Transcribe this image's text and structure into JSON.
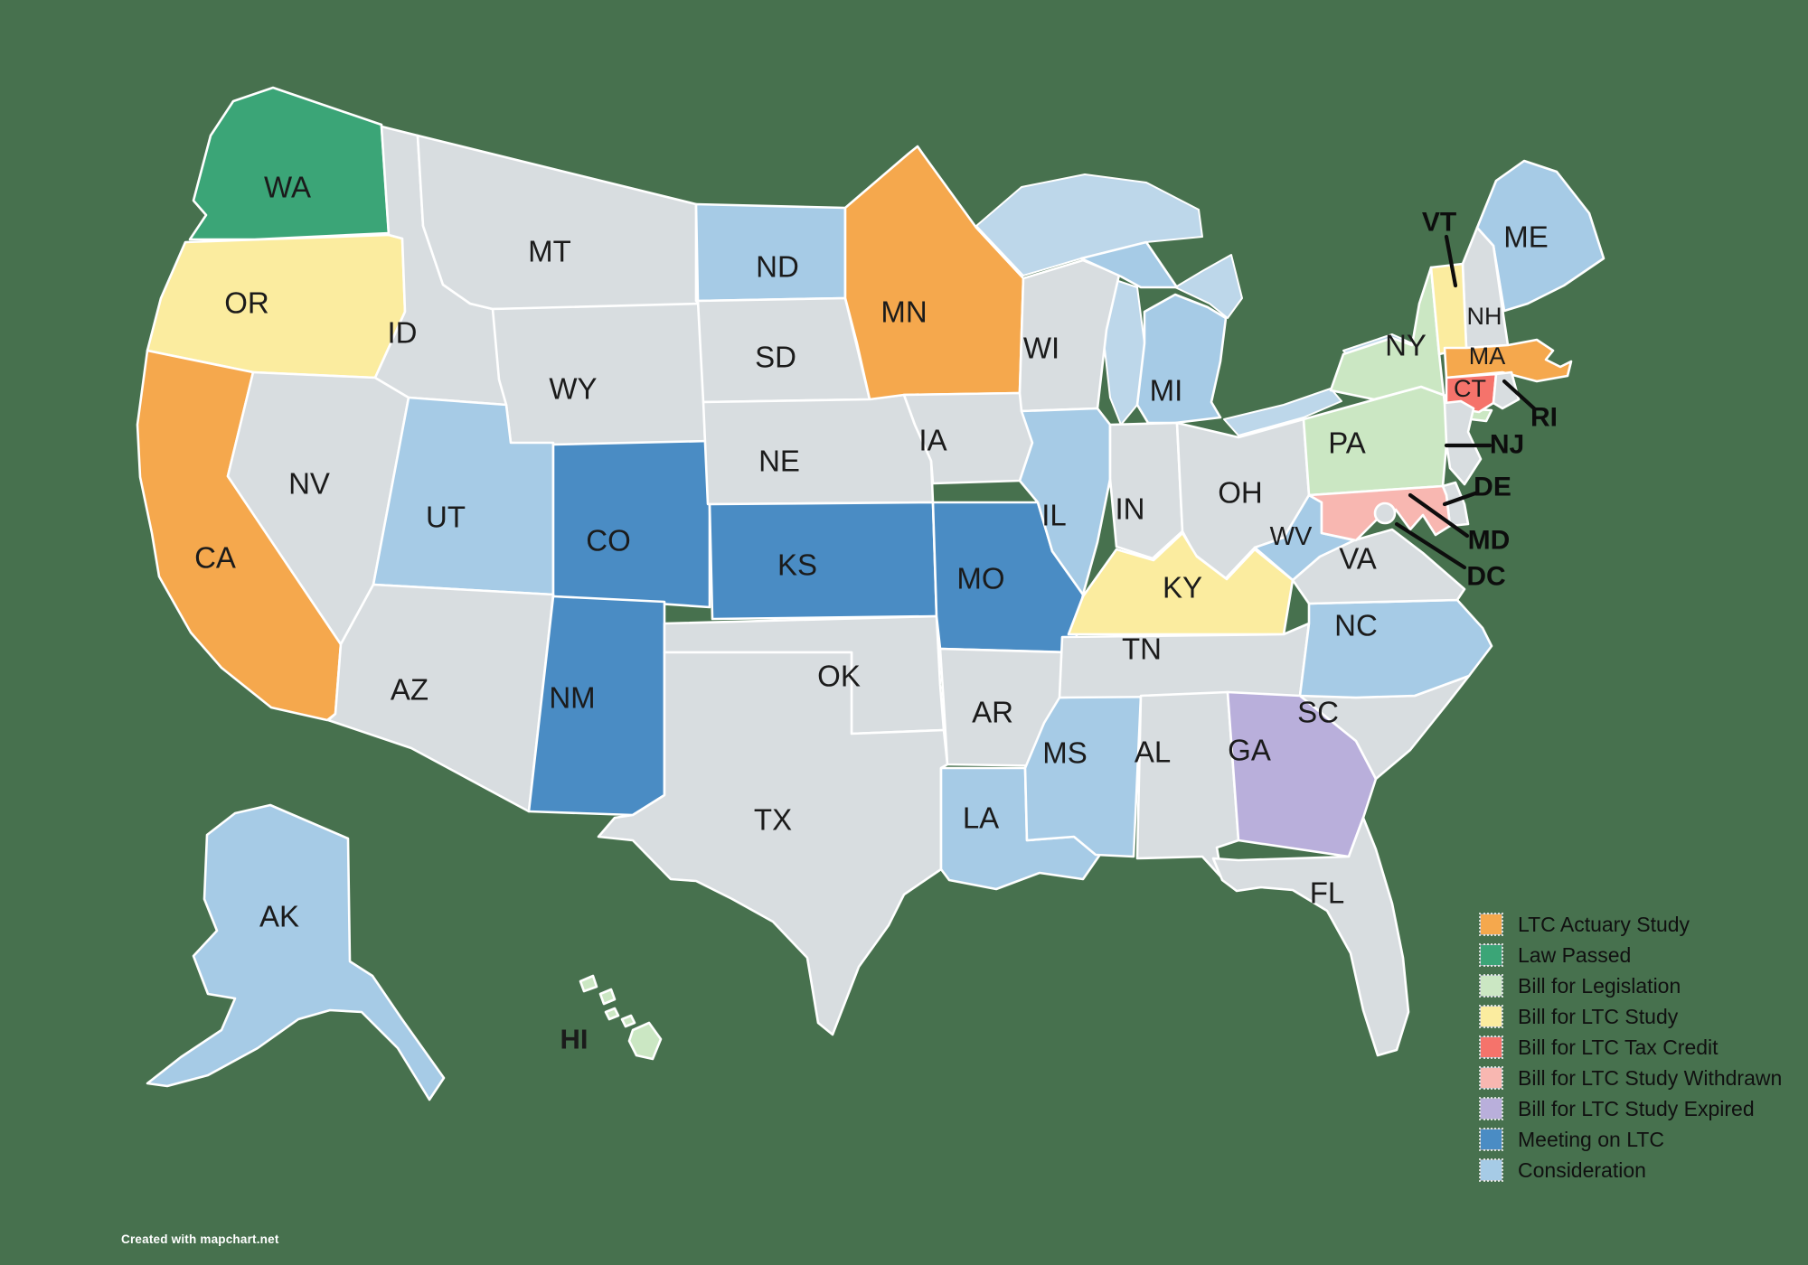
{
  "map": {
    "attribution": "Created with mapchart.net",
    "background_color": "#47714e",
    "lake_color": "#bdd7ea",
    "label_color": "#1b1b1b",
    "status_colors": {
      "actuary": "#f5a84d",
      "law_passed": "#3ba577",
      "bill_legislation": "#cbe7c3",
      "bill_study": "#fbec9f",
      "tax_credit": "#f5736b",
      "study_withdrawn": "#f8b7b1",
      "study_expired": "#b9afdb",
      "meeting": "#4a8cc4",
      "consideration": "#a6cbe6",
      "none": "#d8dde0"
    },
    "legend": [
      {
        "label": "LTC Actuary Study",
        "status": "actuary"
      },
      {
        "label": "Law Passed",
        "status": "law_passed"
      },
      {
        "label": "Bill for Legislation",
        "status": "bill_legislation"
      },
      {
        "label": "Bill for LTC Study",
        "status": "bill_study"
      },
      {
        "label": "Bill for LTC Tax Credit",
        "status": "tax_credit"
      },
      {
        "label": "Bill for LTC Study Withdrawn",
        "status": "study_withdrawn"
      },
      {
        "label": "Bill for LTC Study Expired",
        "status": "study_expired"
      },
      {
        "label": "Meeting on LTC",
        "status": "meeting"
      },
      {
        "label": "Consideration",
        "status": "consideration"
      }
    ],
    "states": [
      {
        "abbr": "WA",
        "status": "law_passed"
      },
      {
        "abbr": "OR",
        "status": "bill_study"
      },
      {
        "abbr": "CA",
        "status": "actuary"
      },
      {
        "abbr": "NV",
        "status": "none"
      },
      {
        "abbr": "ID",
        "status": "none"
      },
      {
        "abbr": "MT",
        "status": "none"
      },
      {
        "abbr": "WY",
        "status": "none"
      },
      {
        "abbr": "UT",
        "status": "consideration"
      },
      {
        "abbr": "CO",
        "status": "meeting"
      },
      {
        "abbr": "AZ",
        "status": "none"
      },
      {
        "abbr": "NM",
        "status": "meeting"
      },
      {
        "abbr": "ND",
        "status": "consideration"
      },
      {
        "abbr": "SD",
        "status": "none"
      },
      {
        "abbr": "NE",
        "status": "none"
      },
      {
        "abbr": "KS",
        "status": "meeting"
      },
      {
        "abbr": "OK",
        "status": "none"
      },
      {
        "abbr": "TX",
        "status": "none"
      },
      {
        "abbr": "MN",
        "status": "actuary"
      },
      {
        "abbr": "IA",
        "status": "none"
      },
      {
        "abbr": "MO",
        "status": "meeting"
      },
      {
        "abbr": "AR",
        "status": "none"
      },
      {
        "abbr": "LA",
        "status": "consideration"
      },
      {
        "abbr": "WI",
        "status": "none"
      },
      {
        "abbr": "IL",
        "status": "consideration"
      },
      {
        "abbr": "MS",
        "status": "consideration"
      },
      {
        "abbr": "MI",
        "status": "consideration"
      },
      {
        "abbr": "IN",
        "status": "none"
      },
      {
        "abbr": "OH",
        "status": "none"
      },
      {
        "abbr": "KY",
        "status": "bill_study"
      },
      {
        "abbr": "TN",
        "status": "none"
      },
      {
        "abbr": "AL",
        "status": "none"
      },
      {
        "abbr": "GA",
        "status": "study_expired"
      },
      {
        "abbr": "FL",
        "status": "none"
      },
      {
        "abbr": "SC",
        "status": "none"
      },
      {
        "abbr": "NC",
        "status": "consideration"
      },
      {
        "abbr": "VA",
        "status": "none"
      },
      {
        "abbr": "WV",
        "status": "consideration"
      },
      {
        "abbr": "PA",
        "status": "bill_legislation"
      },
      {
        "abbr": "NY",
        "status": "bill_legislation"
      },
      {
        "abbr": "ME",
        "status": "consideration"
      },
      {
        "abbr": "NH",
        "status": "none"
      },
      {
        "abbr": "VT",
        "status": "bill_study"
      },
      {
        "abbr": "MA",
        "status": "actuary"
      },
      {
        "abbr": "CT",
        "status": "tax_credit"
      },
      {
        "abbr": "RI",
        "status": "none"
      },
      {
        "abbr": "NJ",
        "status": "none"
      },
      {
        "abbr": "DE",
        "status": "none"
      },
      {
        "abbr": "MD",
        "status": "study_withdrawn"
      },
      {
        "abbr": "DC",
        "status": "none"
      },
      {
        "abbr": "AK",
        "status": "consideration"
      },
      {
        "abbr": "HI",
        "status": "bill_legislation"
      }
    ]
  }
}
